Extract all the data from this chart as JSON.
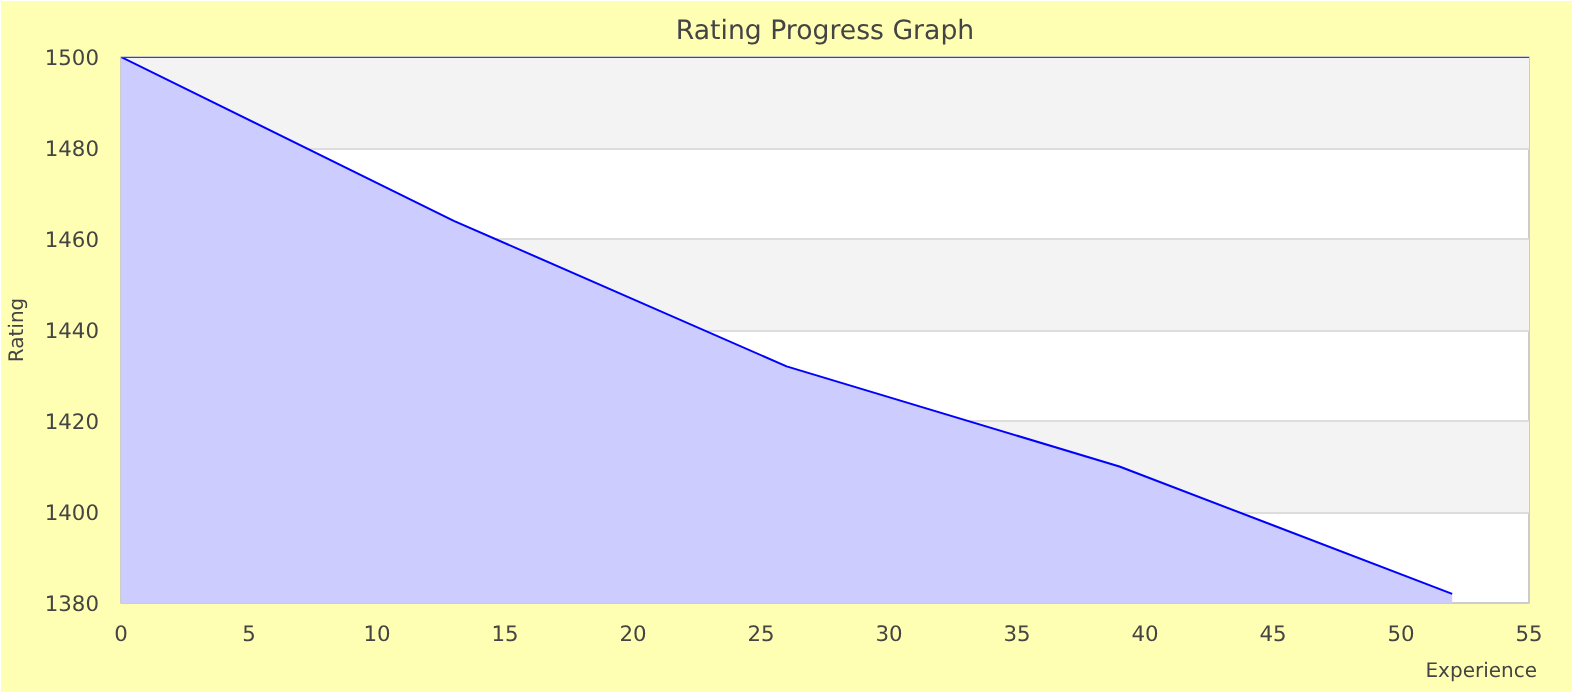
{
  "chart_data": {
    "type": "area",
    "title": "Rating Progress Graph",
    "xlabel": "Experience",
    "ylabel": "Rating",
    "x": [
      0,
      13,
      26,
      39,
      52
    ],
    "series": [
      {
        "color": "#0000ff",
        "values": [
          1500,
          1464,
          1432,
          1410,
          1382
        ]
      }
    ],
    "xlim": [
      0,
      55
    ],
    "ylim": [
      1380,
      1500
    ],
    "xticks": [
      0,
      5,
      10,
      15,
      20,
      25,
      30,
      35,
      40,
      45,
      50,
      55
    ],
    "yticks": [
      1380,
      1400,
      1420,
      1440,
      1460,
      1480,
      1500
    ],
    "grid": "y",
    "ref_lines": [
      {
        "axis": "y",
        "value": 1500,
        "color": "#ff0000"
      }
    ]
  }
}
